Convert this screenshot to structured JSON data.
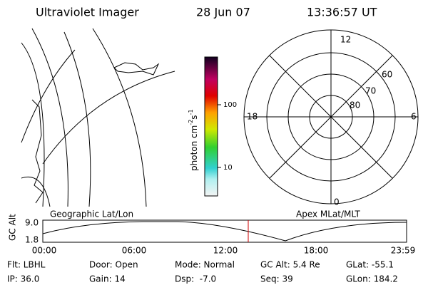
{
  "header": {
    "title": "Ultraviolet Imager",
    "date": "28 Jun 07",
    "time": "13:36:57 UT"
  },
  "colorbar": {
    "label": [
      "photon cm",
      "-2",
      "s",
      "-1"
    ],
    "ticks": [
      "100",
      "10"
    ]
  },
  "polar": {
    "labels": [
      "12",
      "0",
      "18",
      "6",
      "60",
      "70",
      "80"
    ]
  },
  "timeline": {
    "left_title": "Geographic Lat/Lon",
    "right_title": "Apex MLat/MLT",
    "y_title": "GC Alt",
    "y_labels": [
      "9.0",
      "1.8"
    ],
    "x_labels": [
      "00:00",
      "06:00",
      "12:00",
      "18:00",
      "23:59"
    ]
  },
  "footer": {
    "rows": [
      [
        "Flt: LBHL",
        "Door: Open",
        "Mode: Normal",
        "GC Alt: 5.4 Re",
        "GLat: -55.1"
      ],
      [
        "IP: 36.0",
        "Gain: 14",
        "Dsp:  -7.0",
        "Seq: 39",
        "GLon: 184.2"
      ]
    ]
  }
}
